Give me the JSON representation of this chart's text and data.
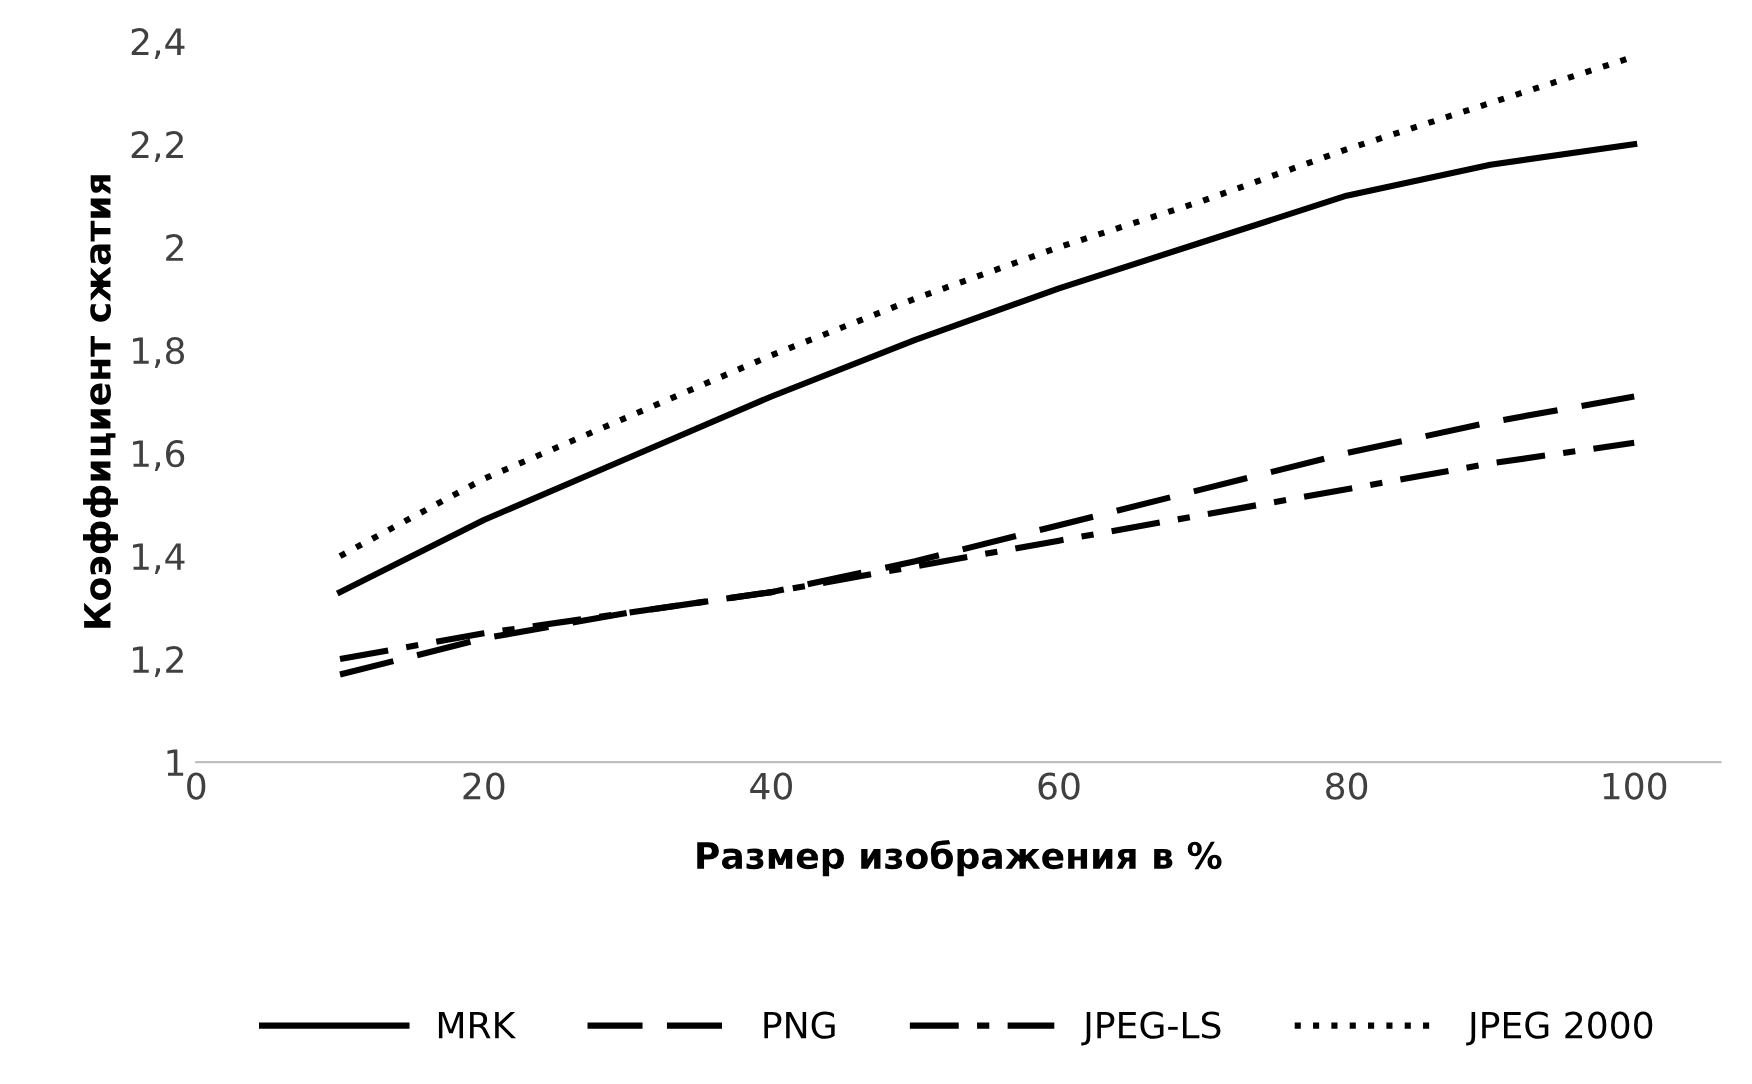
{
  "chart_data": {
    "type": "line",
    "xlabel": "Размер изображения в %",
    "ylabel": "Коэффициент сжатия",
    "xlim": [
      0,
      106
    ],
    "xticks": [
      0,
      20,
      40,
      60,
      80,
      100
    ],
    "ylim": [
      1,
      2.4
    ],
    "yticks": [
      1,
      {
        "value": 1.2,
        "label": "1,2"
      },
      {
        "value": 1.4,
        "label": "1,4"
      },
      {
        "value": 1.6,
        "label": "1,6"
      },
      {
        "value": 1.8,
        "label": "1,8"
      },
      2,
      {
        "value": 2.2,
        "label": "2,2"
      },
      {
        "value": 2.4,
        "label": "2,4"
      }
    ],
    "x": [
      10,
      20,
      30,
      40,
      50,
      60,
      70,
      80,
      90,
      100
    ],
    "legend": "bottom",
    "grid": false,
    "marker": "none",
    "series": [
      {
        "name": "MRK",
        "color": "#000000",
        "line_style": "solid",
        "values": [
          1.33,
          1.47,
          1.59,
          1.71,
          1.82,
          1.92,
          2.01,
          2.1,
          2.16,
          2.2
        ]
      },
      {
        "name": "PNG",
        "color": "#000000",
        "line_style": "dashed",
        "values": [
          1.17,
          1.24,
          1.29,
          1.33,
          1.39,
          1.46,
          1.53,
          1.6,
          1.66,
          1.71
        ]
      },
      {
        "name": "JPEG-LS",
        "color": "#000000",
        "line_style": "dashdot",
        "values": [
          1.2,
          1.25,
          1.29,
          1.33,
          1.38,
          1.43,
          1.48,
          1.53,
          1.58,
          1.62
        ]
      },
      {
        "name": "JPEG 2000",
        "color": "#000000",
        "line_style": "dotted",
        "values": [
          1.4,
          1.55,
          1.67,
          1.79,
          1.9,
          2.0,
          2.09,
          2.19,
          2.28,
          2.37
        ]
      }
    ]
  }
}
